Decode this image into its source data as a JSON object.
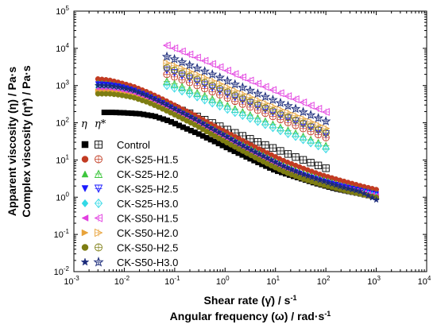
{
  "chart_data": {
    "type": "scatter",
    "x_scale": "log",
    "y_scale": "log",
    "xlim": [
      0.001,
      10000
    ],
    "ylim": [
      0.01,
      100000
    ],
    "x_ticks": [
      "10",
      "10",
      "10",
      "10",
      "10",
      "10",
      "10",
      "10"
    ],
    "x_tick_exponents": [
      "-3",
      "-2",
      "-1",
      "0",
      "1",
      "2",
      "3",
      "4"
    ],
    "y_ticks": [
      "10",
      "10",
      "10",
      "10",
      "10",
      "10",
      "10",
      "10"
    ],
    "y_tick_exponents": [
      "-2",
      "-1",
      "0",
      "1",
      "2",
      "3",
      "4",
      "5"
    ],
    "xlabel_lines": [
      "Shear rate (γ̇) / s",
      "Angular  frequency (ω) / rad·s"
    ],
    "xlabel_superscripts": [
      "-1",
      "-1"
    ],
    "ylabel_lines": [
      "Apparent viscosity (η) / Pa·s",
      "Complex viscosity (η*) / Pa·s"
    ],
    "legend": {
      "placement": "left",
      "header_eta": "η",
      "header_eta_star": "η*"
    },
    "series": [
      {
        "name": "Control",
        "color": "#000000",
        "marker": "square",
        "apparent": {
          "x": [
            0.004,
            0.006,
            0.01,
            0.02,
            0.04,
            0.08,
            0.15,
            0.3,
            0.6,
            1.2,
            2.5,
            5,
            10,
            25,
            60,
            150,
            400,
            1000
          ],
          "y": [
            190,
            190,
            185,
            175,
            150,
            110,
            75,
            50,
            32,
            20,
            12.5,
            8,
            5.2,
            3.5,
            2.4,
            1.7,
            1.3,
            1.0
          ]
        },
        "complex": {
          "x": [
            0.07,
            0.1,
            0.2,
            0.4,
            0.8,
            1.5,
            3,
            6,
            12,
            25,
            50,
            100
          ],
          "y": [
            300,
            250,
            180,
            120,
            80,
            55,
            38,
            26,
            18,
            12,
            8.5,
            6
          ]
        }
      },
      {
        "name": "CK-S25-H1.5",
        "color": "#c23b22",
        "marker": "circle",
        "apparent": {
          "x": [
            0.003,
            0.005,
            0.008,
            0.015,
            0.03,
            0.06,
            0.12,
            0.25,
            0.5,
            1,
            2,
            4,
            8,
            16,
            35,
            80,
            200,
            500,
            1000
          ],
          "y": [
            1500,
            1400,
            1200,
            950,
            650,
            420,
            260,
            160,
            95,
            58,
            36,
            22,
            14,
            9,
            6,
            4,
            2.8,
            2.0,
            1.6
          ]
        },
        "complex": {
          "x": [
            0.07,
            0.1,
            0.2,
            0.4,
            0.8,
            1.5,
            3,
            6,
            12,
            25,
            50,
            100
          ],
          "y": [
            2000,
            1700,
            1200,
            820,
            560,
            390,
            270,
            185,
            125,
            85,
            58,
            40
          ]
        }
      },
      {
        "name": "CK-S25-H2.0",
        "color": "#3ec63e",
        "marker": "triangle-up",
        "apparent": {
          "x": [
            0.003,
            0.005,
            0.008,
            0.015,
            0.03,
            0.06,
            0.12,
            0.25,
            0.5,
            1,
            2,
            4,
            8,
            16,
            35,
            80,
            200,
            500,
            1000
          ],
          "y": [
            1200,
            1150,
            1000,
            800,
            560,
            360,
            220,
            135,
            80,
            48,
            29,
            18,
            11,
            7,
            4.6,
            3.2,
            2.2,
            1.6,
            1.3
          ]
        },
        "complex": {
          "x": [
            0.07,
            0.1,
            0.2,
            0.4,
            0.8,
            1.5,
            3,
            6,
            12,
            25,
            50,
            100
          ],
          "y": [
            1300,
            1100,
            760,
            520,
            350,
            240,
            165,
            112,
            76,
            52,
            35,
            24
          ]
        }
      },
      {
        "name": "CK-S25-H2.5",
        "color": "#1a1aff",
        "marker": "triangle-down",
        "apparent": {
          "x": [
            0.003,
            0.005,
            0.008,
            0.015,
            0.03,
            0.06,
            0.12,
            0.25,
            0.5,
            1,
            2,
            4,
            8,
            16,
            35,
            80,
            200,
            500,
            1000
          ],
          "y": [
            1100,
            1050,
            950,
            760,
            520,
            330,
            200,
            120,
            70,
            42,
            25,
            15,
            9.5,
            6,
            4,
            2.8,
            2.0,
            1.5,
            1.2
          ]
        },
        "complex": {
          "x": [
            0.07,
            0.1,
            0.2,
            0.4,
            0.8,
            1.5,
            3,
            6,
            12,
            25,
            50,
            100
          ],
          "y": [
            2600,
            2200,
            1550,
            1060,
            720,
            500,
            345,
            235,
            160,
            110,
            75,
            50
          ]
        }
      },
      {
        "name": "CK-S25-H3.0",
        "color": "#33d9e6",
        "marker": "diamond",
        "apparent": {
          "x": [
            0.003,
            0.005,
            0.008,
            0.015,
            0.03,
            0.06,
            0.12,
            0.25,
            0.5,
            1,
            2,
            4,
            8,
            16,
            35,
            80,
            200,
            500,
            1000
          ],
          "y": [
            900,
            880,
            800,
            650,
            450,
            290,
            180,
            110,
            64,
            38,
            23,
            14,
            8.8,
            5.6,
            3.7,
            2.6,
            1.8,
            1.4,
            1.1
          ]
        },
        "complex": {
          "x": [
            0.07,
            0.1,
            0.2,
            0.4,
            0.8,
            1.5,
            3,
            6,
            12,
            25,
            50,
            100
          ],
          "y": [
            1000,
            850,
            600,
            410,
            280,
            195,
            135,
            92,
            63,
            43,
            29,
            20
          ]
        }
      },
      {
        "name": "CK-S50-H1.5",
        "color": "#e23fe0",
        "marker": "triangle-left",
        "apparent": {
          "x": [
            0.003,
            0.005,
            0.008,
            0.015,
            0.03,
            0.06,
            0.12,
            0.25,
            0.5,
            1,
            2,
            4,
            8,
            16,
            35,
            80,
            200,
            500,
            1000
          ],
          "y": [
            800,
            780,
            720,
            600,
            430,
            280,
            175,
            105,
            62,
            37,
            22,
            13.5,
            8.5,
            5.4,
            3.6,
            2.5,
            1.8,
            1.4,
            1.1
          ]
        },
        "complex": {
          "x": [
            0.07,
            0.1,
            0.2,
            0.4,
            0.8,
            1.5,
            3,
            6,
            12,
            25,
            50,
            100
          ],
          "y": [
            12000,
            10000,
            6800,
            4600,
            3100,
            2100,
            1400,
            950,
            640,
            430,
            290,
            195
          ]
        }
      },
      {
        "name": "CK-S50-H2.0",
        "color": "#e8a33a",
        "marker": "triangle-right",
        "apparent": {
          "x": [
            0.003,
            0.005,
            0.008,
            0.015,
            0.03,
            0.06,
            0.12,
            0.25,
            0.5,
            1,
            2,
            4,
            8,
            16,
            35,
            80,
            200,
            500,
            1000
          ],
          "y": [
            700,
            690,
            640,
            540,
            390,
            255,
            160,
            97,
            57,
            34,
            20,
            12.5,
            7.8,
            5,
            3.4,
            2.4,
            1.7,
            1.3,
            1.0
          ]
        },
        "complex": {
          "x": [
            0.07,
            0.1,
            0.2,
            0.4,
            0.8,
            1.5,
            3,
            6,
            12,
            25,
            50,
            100
          ],
          "y": [
            4000,
            3400,
            2350,
            1600,
            1090,
            740,
            500,
            340,
            230,
            155,
            105,
            70
          ]
        }
      },
      {
        "name": "CK-S50-H2.5",
        "color": "#7d7d12",
        "marker": "circle",
        "apparent": {
          "x": [
            0.003,
            0.005,
            0.008,
            0.015,
            0.03,
            0.06,
            0.12,
            0.25,
            0.5,
            1,
            2,
            4,
            8,
            16,
            35,
            80,
            200,
            500,
            1000
          ],
          "y": [
            600,
            600,
            560,
            480,
            350,
            230,
            145,
            88,
            52,
            31,
            19,
            11.5,
            7.2,
            4.6,
            3.1,
            2.2,
            1.6,
            1.2,
            1.0
          ]
        },
        "complex": {
          "x": [
            0.07,
            0.1,
            0.2,
            0.4,
            0.8,
            1.5,
            3,
            6,
            12,
            25,
            50,
            100
          ],
          "y": [
            3000,
            2550,
            1760,
            1200,
            820,
            560,
            380,
            258,
            175,
            118,
            80,
            54
          ]
        }
      },
      {
        "name": "CK-S50-H3.0",
        "color": "#1a2a7a",
        "marker": "star",
        "apparent": {
          "x": [
            0.003,
            0.005,
            0.008,
            0.015,
            0.03,
            0.06,
            0.12,
            0.25,
            0.5,
            1,
            2,
            4,
            8,
            16,
            35,
            80,
            200,
            500,
            1000
          ],
          "y": [
            1000,
            980,
            900,
            740,
            510,
            330,
            205,
            125,
            73,
            44,
            26,
            16,
            10,
            6.3,
            4.1,
            2.8,
            1.9,
            1.4,
            0.85
          ]
        },
        "complex": {
          "x": [
            0.07,
            0.1,
            0.2,
            0.4,
            0.8,
            1.5,
            3,
            6,
            12,
            25,
            50,
            100
          ],
          "y": [
            6000,
            5100,
            3500,
            2400,
            1630,
            1110,
            755,
            515,
            350,
            238,
            162,
            110
          ]
        }
      }
    ]
  }
}
